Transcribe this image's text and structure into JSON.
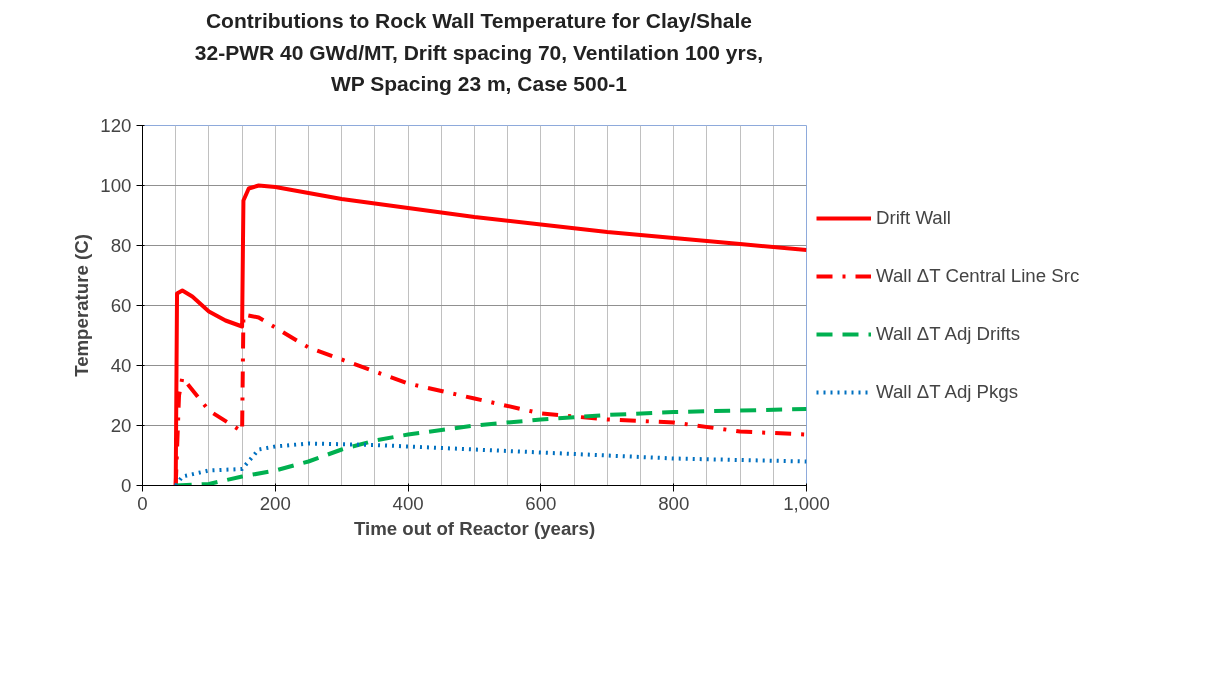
{
  "chart_data": {
    "type": "line",
    "title": "Contributions to Rock Wall Temperature for Clay/Shale\n32-PWR 40 GWd/MT, Drift spacing  70, Ventilation 100 yrs,\nWP Spacing 23 m, Case 500-1",
    "xlabel": "Time out of Reactor (years)",
    "ylabel": "Temperature (C)",
    "xlim": [
      0,
      1000
    ],
    "xticks": [
      0,
      200,
      400,
      600,
      800,
      {
        "value": 1000,
        "label": "1,000"
      }
    ],
    "ylim": [
      0,
      120
    ],
    "yticks": [
      0,
      20,
      40,
      60,
      80,
      100,
      120
    ],
    "grid": true,
    "legend": "right",
    "series": [
      {
        "name": "Drift Wall",
        "color": "#ff0000",
        "line_style": "solid",
        "x": [
          50,
          52,
          60,
          75,
          100,
          125,
          150,
          152,
          160,
          175,
          200,
          300,
          400,
          500,
          600,
          700,
          800,
          900,
          1000
        ],
        "values": [
          0,
          64,
          65,
          63,
          58,
          55,
          53,
          95,
          99,
          100,
          99.5,
          95.5,
          92.5,
          89.5,
          87,
          84.5,
          82.5,
          80.5,
          78.5
        ]
      },
      {
        "name": "Wall ΔT Central Line Src",
        "color": "#ff0000",
        "line_style": "dashdot",
        "x": [
          50,
          55,
          60,
          100,
          150,
          152,
          175,
          250,
          400,
          500,
          600,
          700,
          800,
          900,
          1000
        ],
        "values": [
          0,
          30,
          36,
          25,
          18,
          57,
          56,
          46,
          34,
          29,
          24,
          22,
          21,
          18,
          17
        ]
      },
      {
        "name": "Wall ΔT Adj Drifts",
        "color": "#00b050",
        "line_style": "dashed",
        "x": [
          50,
          100,
          150,
          200,
          250,
          300,
          350,
          400,
          500,
          600,
          700,
          800,
          900,
          1000
        ],
        "values": [
          0,
          0.5,
          3,
          5,
          8,
          12,
          15,
          17,
          20,
          22,
          23.5,
          24.5,
          25,
          25.5
        ]
      },
      {
        "name": "Wall ΔT Adj Pkgs",
        "color": "#0070c0",
        "line_style": "dotted",
        "x": [
          50,
          60,
          100,
          150,
          175,
          200,
          250,
          350,
          400,
          500,
          600,
          700,
          800,
          900,
          1000
        ],
        "values": [
          0,
          3,
          5,
          5.5,
          12,
          13,
          14,
          13.5,
          13,
          12,
          11,
          10,
          9,
          8.5,
          8
        ]
      }
    ]
  }
}
